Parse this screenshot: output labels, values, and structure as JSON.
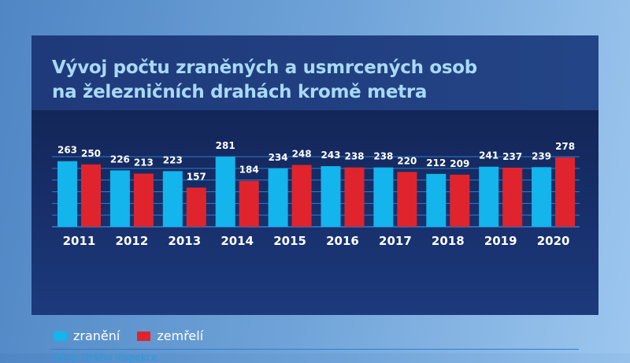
{
  "title_lines": [
    "Vývoj počtu zraněných a usmrcených osob",
    "na železničních drahách kromě metra"
  ],
  "source": "Zdroj: Drážní inspekce",
  "colors": {
    "zraneni": "#14b4ec",
    "zemreli": "#e0242d",
    "title": "#a9d9f6",
    "gridline": "#2c7fcf"
  },
  "chart_data": {
    "type": "bar",
    "title": "Vývoj počtu zraněných a usmrcených osob na železničních drahách kromě metra",
    "categories": [
      "2011",
      "2012",
      "2013",
      "2014",
      "2015",
      "2016",
      "2017",
      "2018",
      "2019",
      "2020"
    ],
    "series": [
      {
        "name": "zranění",
        "values": [
          263,
          226,
          223,
          281,
          234,
          243,
          238,
          212,
          241,
          239
        ]
      },
      {
        "name": "zemřelí",
        "values": [
          250,
          213,
          157,
          184,
          248,
          238,
          220,
          209,
          237,
          278
        ]
      }
    ],
    "ylim": [
      0,
      285
    ],
    "grid": true,
    "legend": "bottom-left",
    "data_labels": true
  }
}
